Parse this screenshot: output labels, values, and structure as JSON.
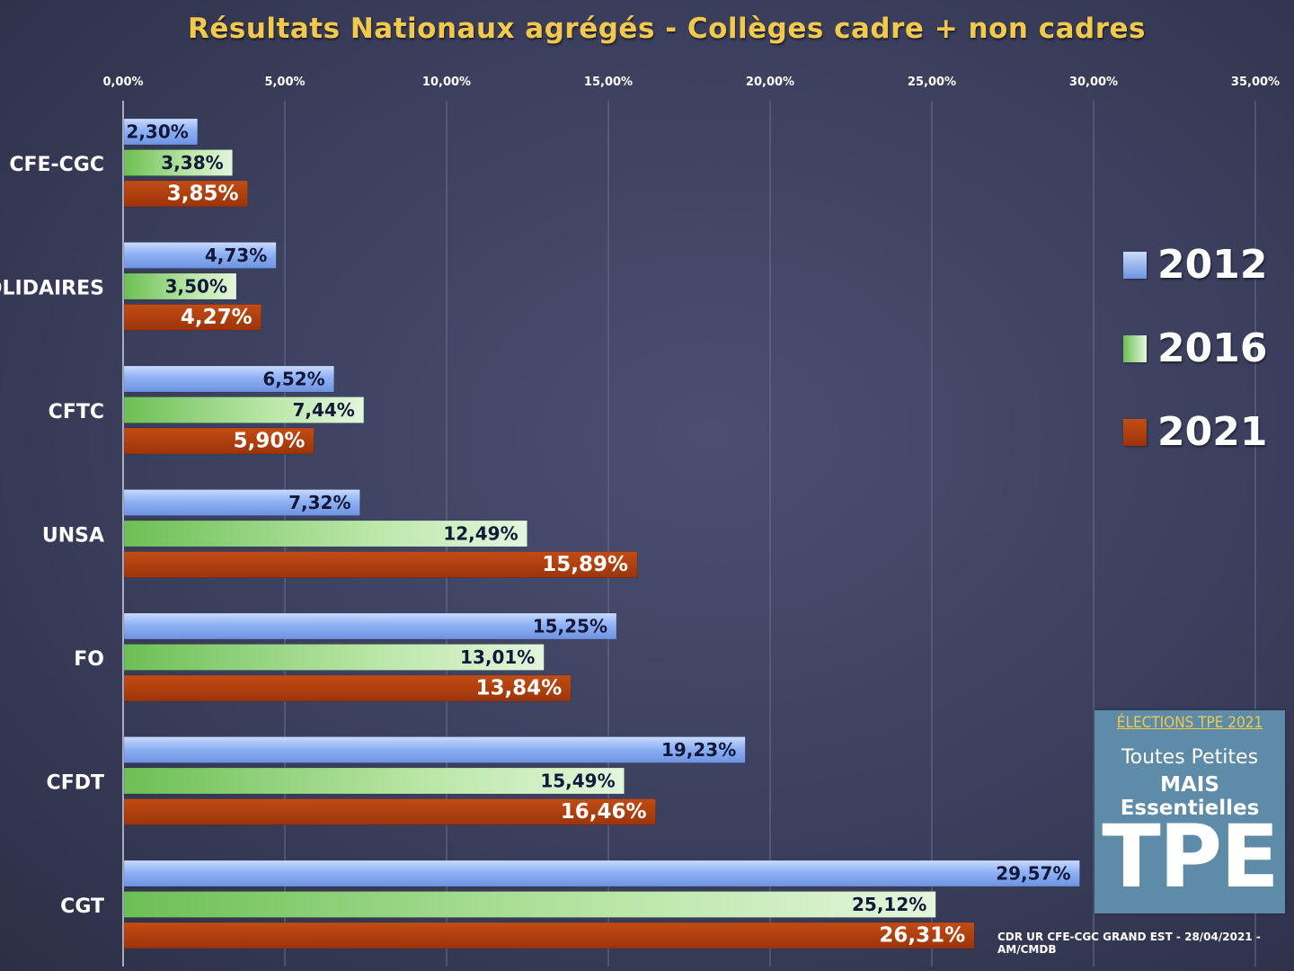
{
  "chart_data": {
    "type": "bar",
    "orientation": "horizontal",
    "title": "Résultats Nationaux agrégés - Collèges cadre + non cadres",
    "categories": [
      "CFE-CGC",
      "SOLIDAIRES",
      "CFTC",
      "UNSA",
      "FO",
      "CFDT",
      "CGT"
    ],
    "series": [
      {
        "name": "2012",
        "values": [
          2.3,
          4.73,
          6.52,
          7.32,
          15.25,
          19.23,
          29.57
        ],
        "labels": [
          "2,30%",
          "4,73%",
          "6,52%",
          "7,32%",
          "15,25%",
          "19,23%",
          "29,57%"
        ]
      },
      {
        "name": "2016",
        "values": [
          3.38,
          3.5,
          7.44,
          12.49,
          13.01,
          15.49,
          25.12
        ],
        "labels": [
          "3,38%",
          "3,50%",
          "7,44%",
          "12,49%",
          "13,01%",
          "15,49%",
          "25,12%"
        ]
      },
      {
        "name": "2021",
        "values": [
          3.85,
          4.27,
          5.9,
          15.89,
          13.84,
          16.46,
          26.31
        ],
        "labels": [
          "3,85%",
          "4,27%",
          "5,90%",
          "15,89%",
          "13,84%",
          "16,46%",
          "26,31%"
        ]
      }
    ],
    "x_ticks": [
      0,
      5,
      10,
      15,
      20,
      25,
      30,
      35
    ],
    "x_tick_labels": [
      "0,00%",
      "5,00%",
      "10,00%",
      "15,00%",
      "20,00%",
      "25,00%",
      "30,00%",
      "35,00%"
    ],
    "xlim": [
      0,
      35
    ],
    "xaxis_position": "top",
    "grid": true,
    "legend_position": "right"
  },
  "colors": {
    "series_2012": "#8fb4f4",
    "series_2016": "#7fcf6a",
    "series_2021": "#b4400e",
    "title": "#f2c94c"
  },
  "logo": {
    "top": "ÉLECTIONS TPE 2021",
    "line1": "Toutes Petites",
    "line2": "MAIS Essentielles",
    "big": "TPE"
  },
  "footer": "CDR UR CFE-CGC GRAND EST - 28/04/2021 - AM/CMDB"
}
